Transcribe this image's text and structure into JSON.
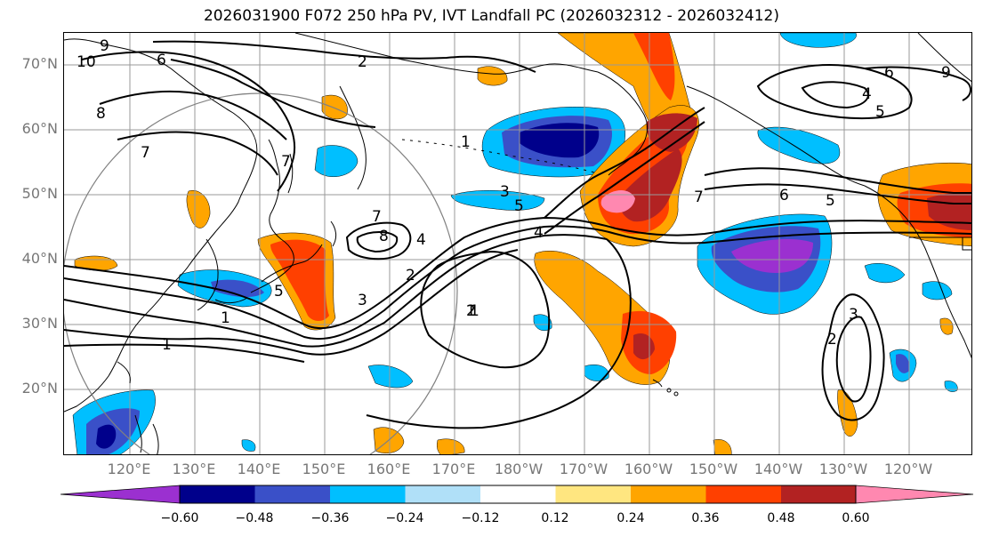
{
  "title": "2026031900 F072 250 hPa PV, IVT Landfall PC (2026032312 - 2026032412)",
  "lat_labels": [
    "70°N",
    "60°N",
    "50°N",
    "40°N",
    "30°N",
    "20°N"
  ],
  "lon_labels": [
    "120°E",
    "130°E",
    "140°E",
    "150°E",
    "160°E",
    "170°E",
    "180°W",
    "170°W",
    "160°W",
    "150°W",
    "140°W",
    "130°W",
    "120°W"
  ],
  "colorbar": {
    "ticks": [
      "−0.60",
      "−0.48",
      "−0.36",
      "−0.24",
      "−0.12",
      "0.12",
      "0.24",
      "0.36",
      "0.48",
      "0.60"
    ],
    "colors": [
      "#9b30d0",
      "#00008b",
      "#3a50c8",
      "#00bfff",
      "#b0e0f8",
      "#ffffff",
      "#ffe680",
      "#ffa500",
      "#ff4000",
      "#b22222",
      "#ff88b0"
    ]
  },
  "contour_labels": [
    "9",
    "10",
    "6",
    "2",
    "8",
    "7",
    "1",
    "7",
    "7",
    "8",
    "4",
    "3",
    "2",
    "5",
    "1",
    "1",
    "3",
    "2",
    "4",
    "5",
    "1",
    "7",
    "6",
    "5",
    "4",
    "5",
    "6",
    "9",
    "3",
    "2",
    "1"
  ],
  "colors": {
    "pv_contour": "#000000",
    "grid": "#999999",
    "coastline": "#000000",
    "circle": "#808080"
  }
}
